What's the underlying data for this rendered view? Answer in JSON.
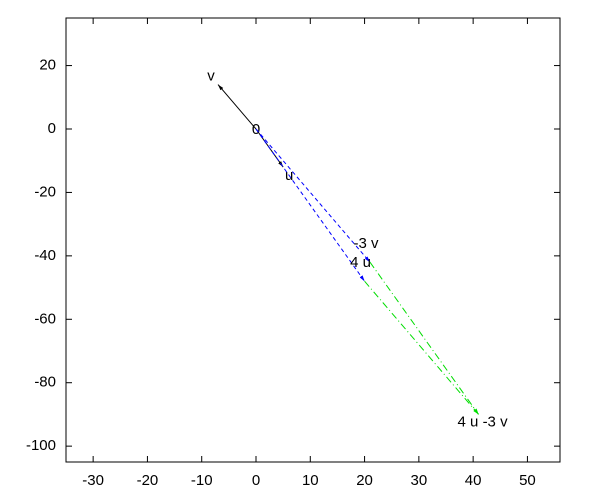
{
  "chart_data": {
    "type": "vector",
    "xlim": [
      -35,
      56
    ],
    "ylim": [
      -105,
      35
    ],
    "xticks": [
      -30,
      -20,
      -10,
      0,
      10,
      20,
      30,
      40,
      50
    ],
    "yticks": [
      20,
      0,
      -20,
      -40,
      -60,
      -80,
      -100
    ],
    "origin": {
      "label": "0",
      "x": 0,
      "y": 0
    },
    "vectors": [
      {
        "name": "v",
        "x": -7,
        "y": 14,
        "color": "#000000",
        "style": "solid"
      },
      {
        "name": "u",
        "x": 5,
        "y": -12,
        "color": "#000000",
        "style": "solid"
      },
      {
        "name": "-3 v",
        "x": 21,
        "y": -42,
        "color": "#0000ff",
        "style": "dashed"
      },
      {
        "name": "4 u",
        "x": 20,
        "y": -48,
        "color": "#0000ff",
        "style": "dashed"
      }
    ],
    "sum": {
      "name": "4 u -3 v",
      "x": 41,
      "y": -90,
      "color": "#00dd00",
      "style": "dashdot"
    }
  }
}
